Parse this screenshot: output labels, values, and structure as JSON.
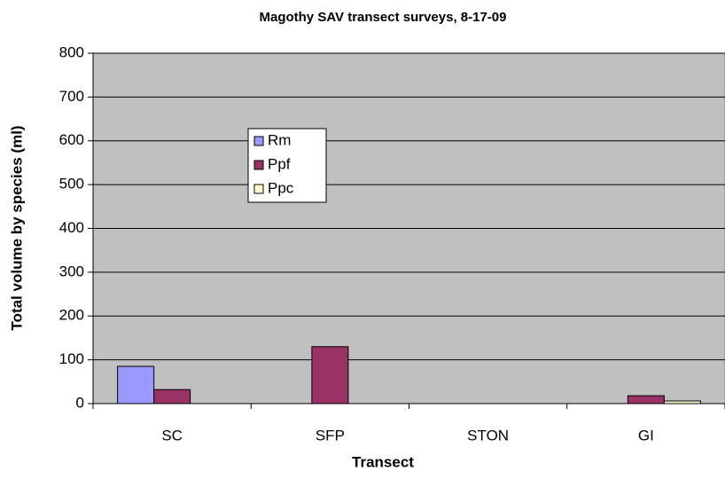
{
  "chart_data": {
    "type": "bar",
    "title": "Magothy SAV transect surveys, 8-17-09",
    "x_label": "Transect",
    "y_label": "Total volume by species (ml)",
    "categories": [
      "SC",
      "SFP",
      "STON",
      "GI"
    ],
    "series": [
      {
        "name": "Rm",
        "color": "#9999ff",
        "values": [
          85,
          0,
          0,
          0
        ]
      },
      {
        "name": "Ppf",
        "color": "#993366",
        "values": [
          32,
          130,
          0,
          18
        ]
      },
      {
        "name": "Ppc",
        "color": "#ffffcc",
        "values": [
          0,
          0,
          0,
          6
        ]
      }
    ],
    "ylim": [
      0,
      800
    ],
    "yticks": [
      0,
      100,
      200,
      300,
      400,
      500,
      600,
      700,
      800
    ],
    "grid": true,
    "plot_background": "#c0c0c0"
  }
}
